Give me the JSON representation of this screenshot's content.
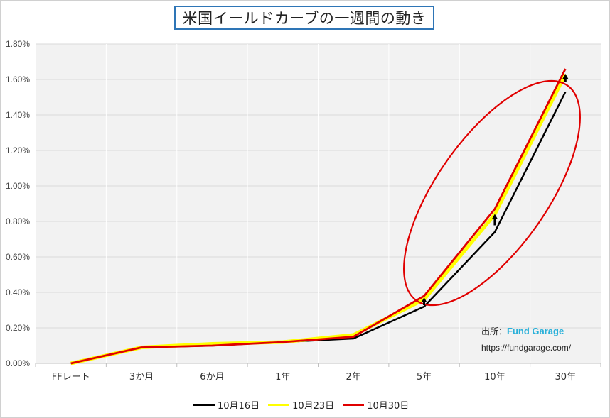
{
  "chart_data": {
    "type": "line",
    "title": "米国イールドカーブの一週間の動き",
    "categories": [
      "FFレート",
      "3か月",
      "6か月",
      "1年",
      "2年",
      "5年",
      "10年",
      "30年"
    ],
    "ylim": [
      0,
      1.8
    ],
    "yticks": [
      "0.00%",
      "0.20%",
      "0.40%",
      "0.60%",
      "0.80%",
      "1.00%",
      "1.20%",
      "1.40%",
      "1.60%",
      "1.80%"
    ],
    "grid": true,
    "legend_position": "bottom",
    "series": [
      {
        "name": "10月16日",
        "color": "#000000",
        "values": [
          0.0,
          0.09,
          0.1,
          0.12,
          0.14,
          0.32,
          0.74,
          1.53
        ]
      },
      {
        "name": "10月23日",
        "color": "#ffff00",
        "values": [
          0.0,
          0.09,
          0.11,
          0.12,
          0.16,
          0.36,
          0.84,
          1.63
        ]
      },
      {
        "name": "10月30日",
        "color": "#e00000",
        "values": [
          0.0,
          0.09,
          0.1,
          0.12,
          0.15,
          0.38,
          0.87,
          1.66
        ]
      }
    ],
    "annotations": {
      "source_label": "出所：",
      "source_brand": "Fund Garage",
      "source_url": "https://fundgarage.com/"
    }
  }
}
